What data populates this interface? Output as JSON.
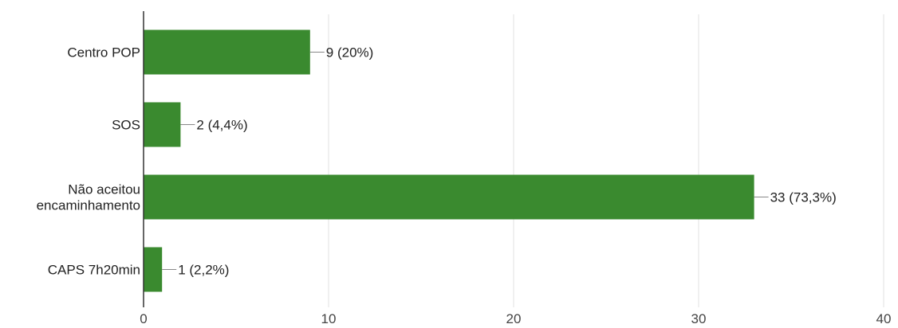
{
  "chart_data": {
    "type": "bar",
    "orientation": "horizontal",
    "categories": [
      [
        "Centro POP"
      ],
      [
        "SOS"
      ],
      [
        "Não aceitou",
        "encaminhamento"
      ],
      [
        "CAPS 7h20min"
      ]
    ],
    "values": [
      9,
      2,
      33,
      1
    ],
    "data_labels": [
      "9 (20%)",
      "2 (4,4%)",
      "33 (73,3%)",
      "1 (2,2%)"
    ],
    "xlim": [
      0,
      40
    ],
    "xticks": [
      "0",
      "10",
      "20",
      "30",
      "40"
    ],
    "grid": true,
    "bar_color": "#3a8a2f",
    "title": "",
    "xlabel": "",
    "ylabel": ""
  }
}
